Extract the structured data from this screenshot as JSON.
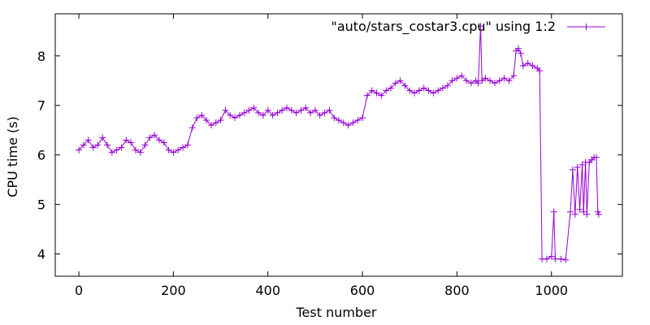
{
  "chart_data": {
    "type": "line",
    "title": "",
    "xlabel": "Test number",
    "ylabel": "CPU time (s)",
    "xlim": [
      -50,
      1150
    ],
    "ylim": [
      3.55,
      8.85
    ],
    "x_ticks": [
      0,
      200,
      400,
      600,
      800,
      1000
    ],
    "y_ticks": [
      4,
      5,
      6,
      7,
      8
    ],
    "grid": false,
    "legend_position": "top-right",
    "marker": "plus",
    "color": "#9400d3",
    "series": [
      {
        "name": "\"auto/stars_costar3.cpu\" using 1:2",
        "points": [
          [
            0,
            6.1
          ],
          [
            10,
            6.2
          ],
          [
            20,
            6.3
          ],
          [
            30,
            6.15
          ],
          [
            40,
            6.2
          ],
          [
            50,
            6.35
          ],
          [
            60,
            6.2
          ],
          [
            70,
            6.05
          ],
          [
            80,
            6.1
          ],
          [
            90,
            6.15
          ],
          [
            100,
            6.3
          ],
          [
            110,
            6.25
          ],
          [
            120,
            6.1
          ],
          [
            130,
            6.05
          ],
          [
            140,
            6.2
          ],
          [
            150,
            6.35
          ],
          [
            160,
            6.4
          ],
          [
            170,
            6.3
          ],
          [
            180,
            6.25
          ],
          [
            190,
            6.1
          ],
          [
            200,
            6.05
          ],
          [
            210,
            6.1
          ],
          [
            220,
            6.15
          ],
          [
            230,
            6.2
          ],
          [
            240,
            6.55
          ],
          [
            250,
            6.75
          ],
          [
            260,
            6.8
          ],
          [
            270,
            6.7
          ],
          [
            280,
            6.6
          ],
          [
            290,
            6.65
          ],
          [
            300,
            6.7
          ],
          [
            310,
            6.9
          ],
          [
            320,
            6.8
          ],
          [
            330,
            6.75
          ],
          [
            340,
            6.8
          ],
          [
            350,
            6.85
          ],
          [
            360,
            6.9
          ],
          [
            370,
            6.95
          ],
          [
            380,
            6.85
          ],
          [
            390,
            6.8
          ],
          [
            400,
            6.9
          ],
          [
            410,
            6.8
          ],
          [
            420,
            6.85
          ],
          [
            430,
            6.9
          ],
          [
            440,
            6.95
          ],
          [
            450,
            6.9
          ],
          [
            460,
            6.85
          ],
          [
            470,
            6.9
          ],
          [
            480,
            6.95
          ],
          [
            490,
            6.85
          ],
          [
            500,
            6.9
          ],
          [
            510,
            6.8
          ],
          [
            520,
            6.85
          ],
          [
            530,
            6.9
          ],
          [
            540,
            6.75
          ],
          [
            550,
            6.7
          ],
          [
            560,
            6.65
          ],
          [
            570,
            6.6
          ],
          [
            580,
            6.65
          ],
          [
            590,
            6.7
          ],
          [
            600,
            6.75
          ],
          [
            610,
            7.2
          ],
          [
            620,
            7.3
          ],
          [
            630,
            7.25
          ],
          [
            640,
            7.2
          ],
          [
            650,
            7.3
          ],
          [
            660,
            7.35
          ],
          [
            670,
            7.45
          ],
          [
            680,
            7.5
          ],
          [
            690,
            7.4
          ],
          [
            700,
            7.3
          ],
          [
            710,
            7.25
          ],
          [
            720,
            7.3
          ],
          [
            730,
            7.35
          ],
          [
            740,
            7.3
          ],
          [
            750,
            7.25
          ],
          [
            760,
            7.3
          ],
          [
            770,
            7.35
          ],
          [
            780,
            7.4
          ],
          [
            790,
            7.5
          ],
          [
            800,
            7.55
          ],
          [
            810,
            7.6
          ],
          [
            820,
            7.5
          ],
          [
            830,
            7.45
          ],
          [
            840,
            7.5
          ],
          [
            845,
            7.45
          ],
          [
            850,
            8.6
          ],
          [
            853,
            7.5
          ],
          [
            860,
            7.55
          ],
          [
            870,
            7.5
          ],
          [
            880,
            7.45
          ],
          [
            890,
            7.5
          ],
          [
            900,
            7.55
          ],
          [
            910,
            7.5
          ],
          [
            920,
            7.6
          ],
          [
            925,
            8.1
          ],
          [
            930,
            8.15
          ],
          [
            935,
            8.05
          ],
          [
            940,
            7.8
          ],
          [
            950,
            7.85
          ],
          [
            960,
            7.8
          ],
          [
            970,
            7.75
          ],
          [
            975,
            7.7
          ],
          [
            980,
            3.9
          ],
          [
            990,
            3.9
          ],
          [
            1000,
            3.95
          ],
          [
            1005,
            4.85
          ],
          [
            1008,
            3.9
          ],
          [
            1020,
            3.9
          ],
          [
            1030,
            3.88
          ],
          [
            1040,
            4.85
          ],
          [
            1045,
            5.7
          ],
          [
            1050,
            4.8
          ],
          [
            1055,
            5.75
          ],
          [
            1060,
            4.9
          ],
          [
            1065,
            5.8
          ],
          [
            1068,
            4.85
          ],
          [
            1072,
            5.85
          ],
          [
            1075,
            4.8
          ],
          [
            1080,
            5.85
          ],
          [
            1085,
            5.9
          ],
          [
            1090,
            5.95
          ],
          [
            1095,
            5.95
          ],
          [
            1098,
            4.85
          ],
          [
            1100,
            4.8
          ]
        ]
      }
    ]
  }
}
